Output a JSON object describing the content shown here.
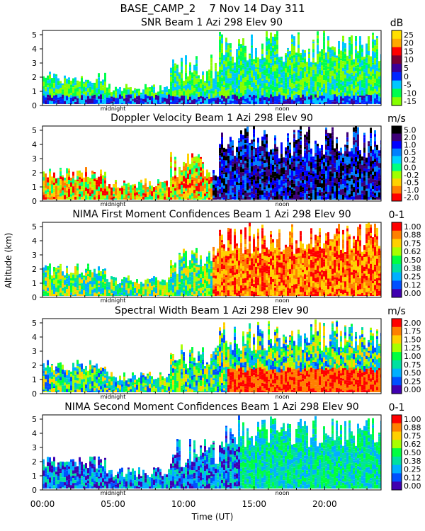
{
  "header": "BASE_CAMP_2    7 Nov 14 Day 311",
  "ylabel": "Altitude (km)",
  "xlabel": "Time (UT)",
  "x_ticks": [
    "00:00",
    "05:00",
    "10:00",
    "15:00",
    "20:00"
  ],
  "x_tick_hours": [
    0,
    5,
    10,
    15,
    20
  ],
  "marker_labels": {
    "midnight": "midnight",
    "noon": "noon"
  },
  "marker_hours": {
    "midnight": 5,
    "noon": 17
  },
  "chart_data": [
    {
      "type": "heatmap",
      "title": "SNR Beam 1 Azi 298 Elev 90",
      "unit": "dB",
      "xlim": [
        0,
        24
      ],
      "ylim": [
        0,
        5.3
      ],
      "y_ticks": [
        0,
        1,
        2,
        3,
        4,
        5
      ],
      "colorbar_ticks": [
        "25",
        "20",
        "15",
        "10",
        "5",
        "0",
        "-5",
        "-10",
        "-15"
      ],
      "colorbar_colors": [
        "#ffdf00",
        "#ffa800",
        "#ff0000",
        "#7a0033",
        "#3b0099",
        "#0026ff",
        "#00c7ff",
        "#00ff4e",
        "#86ff00"
      ]
    },
    {
      "type": "heatmap",
      "title": "Doppler Velocity Beam 1 Azi 298 Elev 90",
      "unit": "m/s",
      "xlim": [
        0,
        24
      ],
      "ylim": [
        0,
        5.3
      ],
      "y_ticks": [
        0,
        1,
        2,
        3,
        4,
        5
      ],
      "colorbar_ticks": [
        "5.0",
        "2.0",
        "1.0",
        "0.5",
        "0.2",
        "0.0",
        "-0.2",
        "-0.5",
        "-1.0",
        "-2.0"
      ],
      "colorbar_colors": [
        "#000000",
        "#3d0078",
        "#0000ff",
        "#0080ff",
        "#00d2ff",
        "#00ff80",
        "#a0ff00",
        "#ffd200",
        "#ff8000",
        "#ff0000"
      ]
    },
    {
      "type": "heatmap",
      "title": "NIMA First Moment Confidences Beam 1 Azi 298 Elev 90",
      "unit": "0-1",
      "xlim": [
        0,
        24
      ],
      "ylim": [
        0,
        5.3
      ],
      "y_ticks": [
        0,
        1,
        2,
        3,
        4,
        5
      ],
      "colorbar_ticks": [
        "1.00",
        "0.88",
        "0.75",
        "0.62",
        "0.50",
        "0.38",
        "0.25",
        "0.12",
        "0.00"
      ],
      "colorbar_colors": [
        "#ff0000",
        "#ff8000",
        "#ffd000",
        "#a8ff00",
        "#00ff40",
        "#00e0a0",
        "#00b0ff",
        "#0050ff",
        "#4000b0"
      ]
    },
    {
      "type": "heatmap",
      "title": "Spectral Width Beam 1 Azi 298 Elev 90",
      "unit": "m/s",
      "xlim": [
        0,
        24
      ],
      "ylim": [
        0,
        5.3
      ],
      "y_ticks": [
        0,
        1,
        2,
        3,
        4,
        5
      ],
      "colorbar_ticks": [
        "2.00",
        "1.75",
        "1.50",
        "1.25",
        "1.00",
        "0.75",
        "0.50",
        "0.25",
        "0.00"
      ],
      "colorbar_colors": [
        "#ff0000",
        "#ff8000",
        "#ffd000",
        "#a8ff00",
        "#00ff40",
        "#00e0a0",
        "#00b0ff",
        "#0050ff",
        "#4000b0"
      ]
    },
    {
      "type": "heatmap",
      "title": "NIMA Second Moment Confidences Beam 1 Azi 298 Elev 90",
      "unit": "0-1",
      "xlim": [
        0,
        24
      ],
      "ylim": [
        0,
        5.3
      ],
      "y_ticks": [
        0,
        1,
        2,
        3,
        4,
        5
      ],
      "colorbar_ticks": [
        "1.00",
        "0.88",
        "0.75",
        "0.62",
        "0.50",
        "0.38",
        "0.25",
        "0.12",
        "0.00"
      ],
      "colorbar_colors": [
        "#ff0000",
        "#ff8000",
        "#ffd000",
        "#a8ff00",
        "#00ff40",
        "#00e0a0",
        "#00b0ff",
        "#0050ff",
        "#4000b0"
      ]
    }
  ]
}
